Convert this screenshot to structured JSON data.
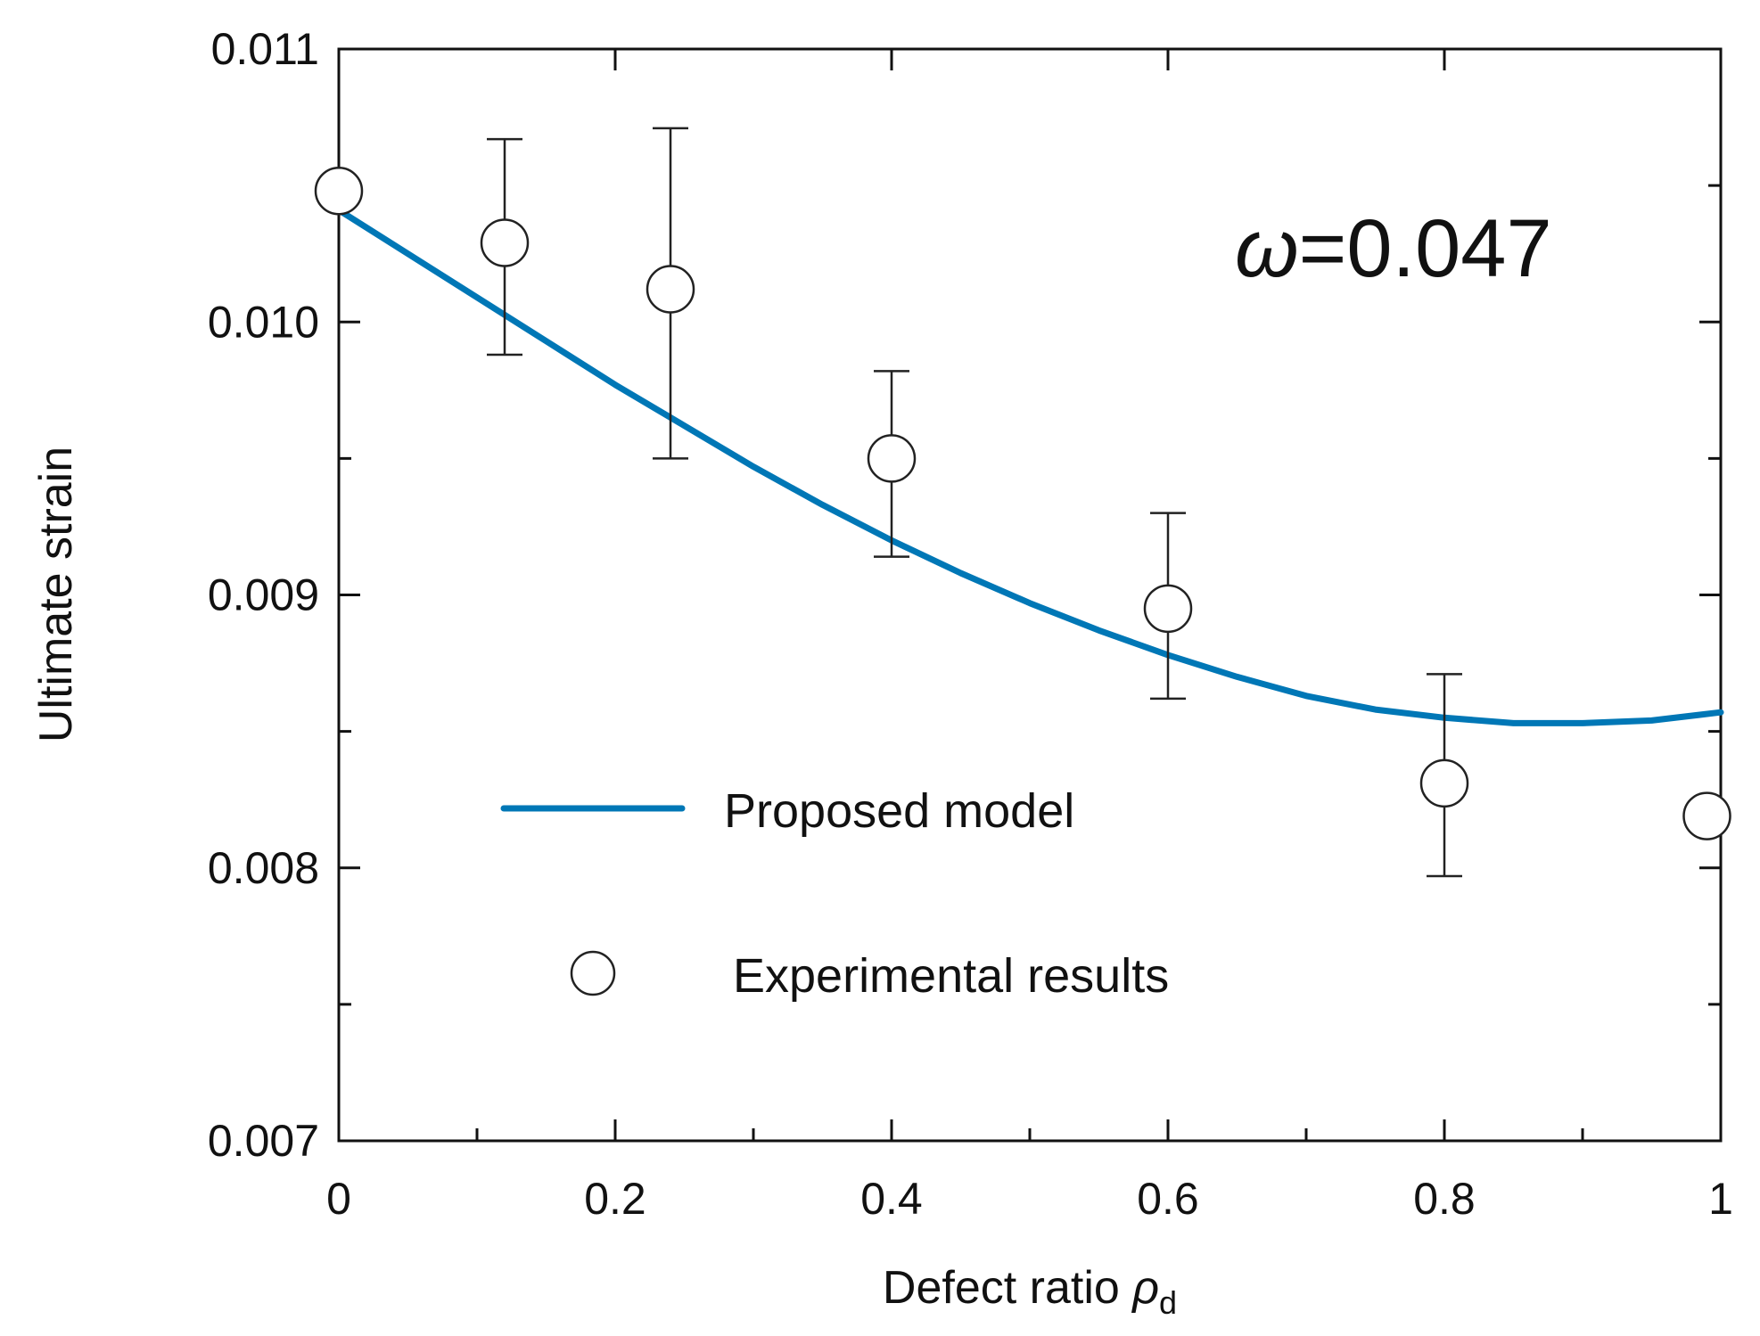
{
  "chart_data": {
    "type": "scatter",
    "xlabel": "Defect ratio ",
    "xlabel_symbol": "ρ",
    "xlabel_subscript": "d",
    "ylabel": "Ultimate strain",
    "xlim": [
      0,
      1
    ],
    "ylim": [
      0.007,
      0.011
    ],
    "x_ticks": [
      {
        "value": 0,
        "label": "0"
      },
      {
        "value": 0.2,
        "label": "0.2"
      },
      {
        "value": 0.4,
        "label": "0.4"
      },
      {
        "value": 0.6,
        "label": "0.6"
      },
      {
        "value": 0.8,
        "label": "0.8"
      },
      {
        "value": 1,
        "label": "1"
      }
    ],
    "x_minor_ticks": [
      0.1,
      0.3,
      0.5,
      0.7,
      0.9
    ],
    "y_ticks": [
      {
        "value": 0.007,
        "label": "0.007"
      },
      {
        "value": 0.008,
        "label": "0.008"
      },
      {
        "value": 0.009,
        "label": "0.009"
      },
      {
        "value": 0.01,
        "label": "0.010"
      },
      {
        "value": 0.011,
        "label": "0.011"
      }
    ],
    "y_minor_ticks": [
      0.0075,
      0.0085,
      0.0095,
      0.0105
    ],
    "annotation_symbol": "ω",
    "annotation_value": "=0.047",
    "legend": [
      {
        "label": "Proposed model",
        "marker": "line",
        "color": "#0077b6"
      },
      {
        "label": "Experimental results",
        "marker": "open-circle",
        "color": "#222222"
      }
    ],
    "series": [
      {
        "name": "Proposed model",
        "kind": "line",
        "color": "#0077b6",
        "x": [
          0,
          0.05,
          0.1,
          0.15,
          0.2,
          0.25,
          0.3,
          0.35,
          0.4,
          0.45,
          0.5,
          0.55,
          0.6,
          0.65,
          0.7,
          0.75,
          0.8,
          0.85,
          0.9,
          0.95,
          1.0
        ],
        "y": [
          0.01041,
          0.01025,
          0.01009,
          0.00993,
          0.00977,
          0.00962,
          0.00947,
          0.00933,
          0.0092,
          0.00908,
          0.00897,
          0.00887,
          0.00878,
          0.0087,
          0.00863,
          0.00858,
          0.00855,
          0.00853,
          0.00853,
          0.00854,
          0.00857
        ]
      },
      {
        "name": "Experimental results",
        "kind": "scatter",
        "color": "#222222",
        "x": [
          0.0,
          0.12,
          0.24,
          0.4,
          0.6,
          0.8,
          0.99
        ],
        "y": [
          0.01048,
          0.01029,
          0.01012,
          0.0095,
          0.00895,
          0.00831,
          0.00819
        ],
        "err_low": [
          null,
          0.00988,
          0.0095,
          0.00914,
          0.00862,
          0.00797,
          null
        ],
        "err_high": [
          null,
          0.01067,
          0.01071,
          0.00982,
          0.0093,
          0.00871,
          null
        ]
      }
    ]
  }
}
